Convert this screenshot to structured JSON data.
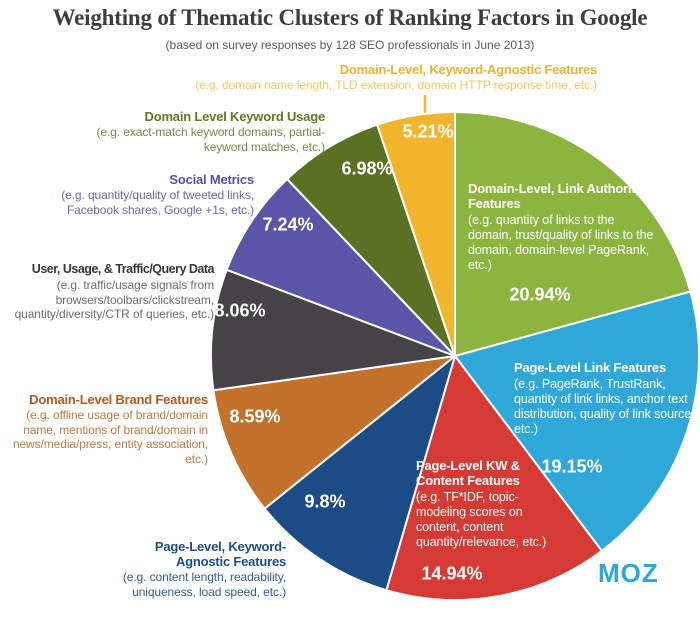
{
  "title": "Weighting of Thematic Clusters of Ranking Factors in Google",
  "subtitle": "(based on survey responses by 128 SEO professionals in June 2013)",
  "brand": {
    "logo_text": "MOZ",
    "color": "#2ca7da"
  },
  "chart_data": {
    "type": "pie",
    "title": "Weighting of Thematic Clusters of Ranking Factors in Google",
    "subtitle": "(based on survey responses by 128 SEO professionals in June 2013)",
    "start_angle_deg": 0,
    "direction": "clockwise",
    "slices": [
      {
        "id": "domain-link-authority",
        "label": "Domain-Level, Link Authority Features",
        "desc": "(e.g. quantity of links to the domain, trust/quality of links to the domain, domain-level PageRank, etc.)",
        "value": 20.94,
        "pct": "20.94%",
        "color": "#8cb43f",
        "label_placement": "inside"
      },
      {
        "id": "page-link-features",
        "label": "Page-Level Link Features",
        "desc": "(e.g. PageRank, TrustRank, quantity of link links, anchor text distribution, quality of link sources, etc.)",
        "value": 19.15,
        "pct": "19.15%",
        "color": "#2fa7d9",
        "label_placement": "inside"
      },
      {
        "id": "page-kw-content",
        "label": "Page-Level KW & Content Features",
        "desc": "(e.g. TF*IDF, topic-modeling scores on content, content quantity/relevance, etc.)",
        "value": 14.94,
        "pct": "14.94%",
        "color": "#d63a35",
        "label_placement": "inside"
      },
      {
        "id": "page-kw-agnostic",
        "label": "Page-Level, Keyword-Agnostic Features",
        "desc": "(e.g. content length, readability, uniqueness, load speed, etc.)",
        "value": 9.8,
        "pct": "9.8%",
        "color": "#1c4c85",
        "label_placement": "outside"
      },
      {
        "id": "domain-brand",
        "label": "Domain-Level Brand Features",
        "desc": "(e.g. offline usage of brand/domain name, mentions of brand/domain in news/media/press, entity association, etc.)",
        "value": 8.59,
        "pct": "8.59%",
        "color": "#c2722b",
        "label_placement": "outside"
      },
      {
        "id": "user-usage-traffic",
        "label": "User, Usage, & Traffic/Query Data",
        "desc": "(e.g. traffic/usage signals from browsers/toolbars/clickstream, quantity/diversity/CTR of queries, etc.)",
        "value": 8.06,
        "pct": "8.06%",
        "color": "#454345",
        "label_placement": "outside"
      },
      {
        "id": "social-metrics",
        "label": "Social Metrics",
        "desc": "(e.g. quantity/quality of tweeted links, Facebook shares, Google +1s, etc.)",
        "value": 7.24,
        "pct": "7.24%",
        "color": "#5c54a6",
        "label_placement": "outside"
      },
      {
        "id": "domain-kw-usage",
        "label": "Domain Level Keyword Usage",
        "desc": "(e.g. exact-match keyword domains, partial-keyword matches, etc.)",
        "value": 6.98,
        "pct": "6.98%",
        "color": "#5a7124",
        "label_placement": "outside"
      },
      {
        "id": "domain-kw-agnostic",
        "label": "Domain-Level, Keyword-Agnostic Features",
        "desc": "(e.g. domain name length, TLD extension, domain HTTP response time, etc.)",
        "value": 5.21,
        "pct": "5.21%",
        "color": "#f3b52d",
        "label_placement": "outside"
      }
    ]
  }
}
